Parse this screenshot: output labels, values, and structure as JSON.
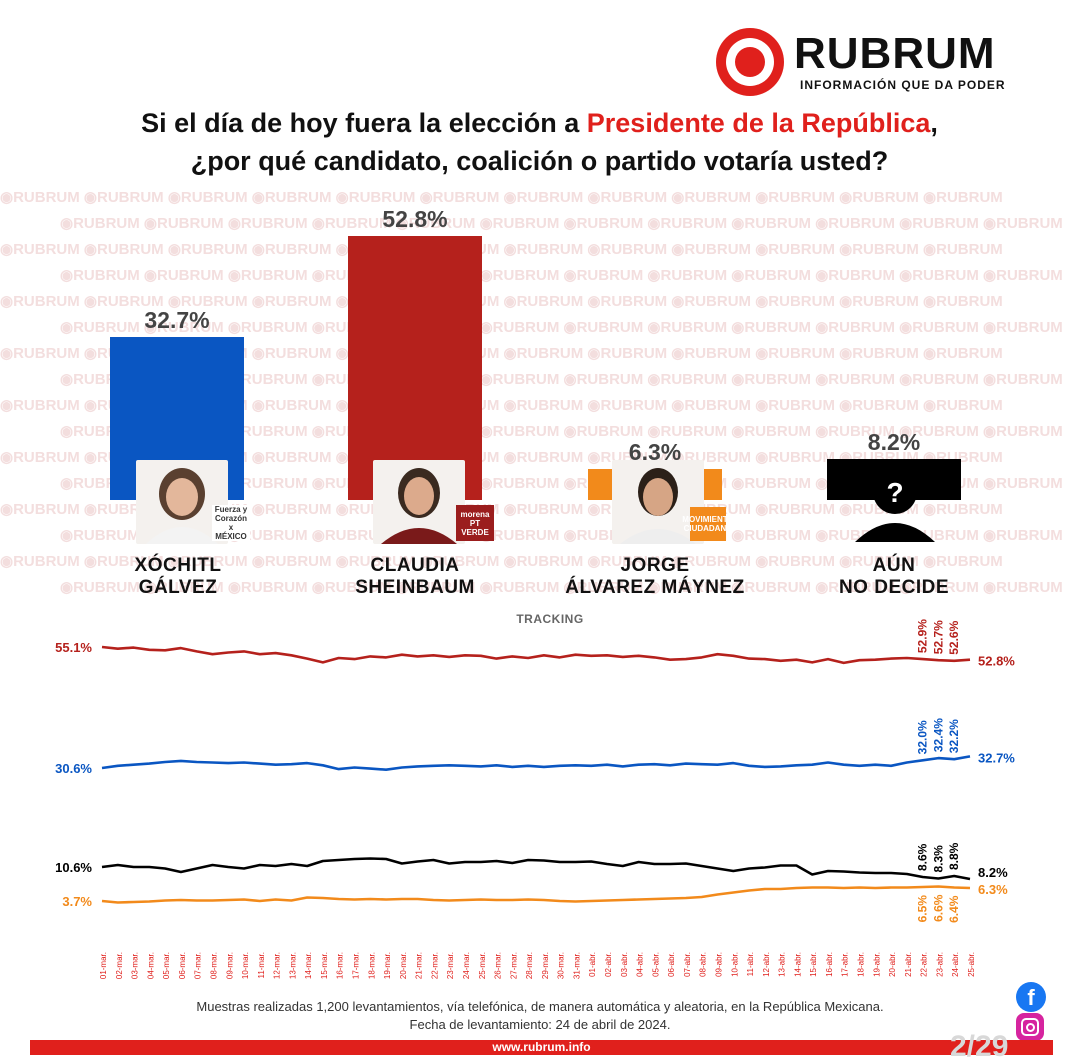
{
  "logo": {
    "brand": "RUBRUM",
    "tagline": "INFORMACIÓN QUE DA PODER"
  },
  "question": {
    "part1": "Si el día de hoy fuera la elección a ",
    "highlight": "Presidente de la República",
    "part2": ",",
    "line2": "¿por qué candidato, coalición o partido votaría usted?"
  },
  "watermark": "RUBRUM",
  "colors": {
    "accent": "#e0201c",
    "galvez": "#0a56c2",
    "sheinbaum": "#b5211c",
    "maynez": "#f28a1b",
    "undecided": "#000000"
  },
  "candidates": [
    {
      "id": "galvez",
      "line1": "XÓCHITL",
      "line2": "GÁLVEZ",
      "value_label": "32.7%",
      "value": 32.7,
      "party": "Fuerza y Corazón x MÉXICO"
    },
    {
      "id": "sheinbaum",
      "line1": "CLAUDIA",
      "line2": "SHEINBAUM",
      "value_label": "52.8%",
      "value": 52.8,
      "party": "morena PT VERDE"
    },
    {
      "id": "maynez",
      "line1": "JORGE",
      "line2": "ÁLVAREZ MÁYNEZ",
      "value_label": "6.3%",
      "value": 6.3,
      "party": "MOVIMIENTO CIUDADANO"
    },
    {
      "id": "undecided",
      "line1": "AÚN",
      "line2": "NO DECIDE",
      "value_label": "8.2%",
      "value": 8.2,
      "party": ""
    }
  ],
  "chart_data": [
    {
      "type": "bar",
      "categories": [
        "XÓCHITL GÁLVEZ",
        "CLAUDIA SHEINBAUM",
        "JORGE ÁLVAREZ MÁYNEZ",
        "AÚN NO DECIDE"
      ],
      "values": [
        32.7,
        52.8,
        6.3,
        8.2
      ],
      "ylim": [
        0,
        60
      ]
    },
    {
      "type": "line",
      "title": "TRACKING",
      "x": [
        "01-mar.",
        "02-mar.",
        "03-mar.",
        "04-mar.",
        "05-mar.",
        "06-mar.",
        "07-mar.",
        "08-mar.",
        "09-mar.",
        "10-mar.",
        "11-mar.",
        "12-mar.",
        "13-mar.",
        "14-mar.",
        "15-mar.",
        "16-mar.",
        "17-mar.",
        "18-mar.",
        "19-mar.",
        "20-mar.",
        "21-mar.",
        "22-mar.",
        "23-mar.",
        "24-mar.",
        "25-mar.",
        "26-mar.",
        "27-mar.",
        "28-mar.",
        "29-mar.",
        "30-mar.",
        "31-mar.",
        "01-abr.",
        "02-abr.",
        "03-abr.",
        "04-abr.",
        "05-abr.",
        "06-abr.",
        "07-abr.",
        "08-abr.",
        "09-abr.",
        "10-abr.",
        "11-abr.",
        "12-abr.",
        "13-abr.",
        "14-abr.",
        "15-abr.",
        "16-abr.",
        "17-abr.",
        "18-abr.",
        "19-abr.",
        "20-abr.",
        "21-abr.",
        "22-abr.",
        "23-abr.",
        "24-abr.",
        "25-abr."
      ],
      "series": [
        {
          "id": "sheinbaum",
          "start_label": "55.1%",
          "end_label": "52.8%",
          "recent_labels": [
            "52.9%",
            "52.7%",
            "52.6%"
          ],
          "values": [
            55.1,
            54.8,
            55.0,
            54.6,
            54.5,
            54.9,
            54.3,
            53.8,
            54.1,
            54.3,
            53.8,
            54.0,
            53.6,
            53.0,
            52.3,
            53.1,
            52.9,
            53.4,
            53.2,
            53.7,
            53.4,
            53.6,
            53.3,
            53.6,
            53.5,
            53.0,
            53.4,
            53.1,
            53.6,
            53.2,
            53.7,
            53.5,
            53.6,
            53.3,
            53.5,
            53.2,
            52.8,
            52.9,
            53.2,
            53.8,
            53.5,
            53.0,
            52.9,
            52.6,
            52.8,
            52.3,
            52.9,
            52.2,
            52.7,
            52.8,
            53.0,
            53.1,
            52.9,
            52.7,
            52.6,
            52.8
          ]
        },
        {
          "id": "galvez",
          "start_label": "30.6%",
          "end_label": "32.7%",
          "recent_labels": [
            "32.0%",
            "32.4%",
            "32.2%"
          ],
          "values": [
            30.6,
            31.0,
            31.2,
            31.4,
            31.7,
            31.9,
            31.7,
            31.6,
            31.5,
            31.6,
            31.4,
            31.2,
            31.3,
            31.5,
            31.1,
            30.4,
            30.7,
            30.5,
            30.3,
            30.7,
            30.9,
            31.0,
            31.1,
            31.0,
            30.9,
            31.1,
            30.8,
            31.0,
            30.8,
            31.0,
            31.1,
            31.0,
            31.2,
            30.9,
            31.2,
            31.3,
            31.1,
            31.4,
            31.3,
            31.2,
            31.5,
            31.0,
            30.8,
            30.9,
            31.1,
            31.2,
            31.6,
            31.2,
            31.0,
            31.2,
            31.0,
            31.6,
            32.0,
            32.4,
            32.2,
            32.7
          ]
        },
        {
          "id": "undecided",
          "start_label": "10.6%",
          "end_label": "8.2%",
          "recent_labels": [
            "8.6%",
            "8.3%",
            "8.8%"
          ],
          "values": [
            10.6,
            11.0,
            10.6,
            10.6,
            10.3,
            9.6,
            10.3,
            11.0,
            10.6,
            10.3,
            11.0,
            10.8,
            11.2,
            10.8,
            11.8,
            12.0,
            12.2,
            12.3,
            12.2,
            11.3,
            11.7,
            12.0,
            11.3,
            11.6,
            11.6,
            11.8,
            11.4,
            12.0,
            11.9,
            11.6,
            11.6,
            11.7,
            11.2,
            10.8,
            11.6,
            11.2,
            11.2,
            11.3,
            10.8,
            10.3,
            9.8,
            10.3,
            10.5,
            10.9,
            10.9,
            9.1,
            9.8,
            9.7,
            9.5,
            9.4,
            9.4,
            9.2,
            8.6,
            8.3,
            8.8,
            8.2
          ]
        },
        {
          "id": "maynez",
          "start_label": "3.7%",
          "end_label": "6.3%",
          "recent_labels": [
            "6.5%",
            "6.6%",
            "6.4%"
          ],
          "values": [
            3.7,
            3.4,
            3.5,
            3.6,
            3.8,
            3.9,
            3.8,
            3.8,
            3.9,
            4.0,
            3.7,
            4.0,
            3.8,
            4.4,
            4.3,
            4.1,
            4.0,
            4.1,
            4.0,
            4.1,
            4.1,
            3.9,
            3.8,
            3.9,
            4.0,
            3.9,
            3.9,
            4.0,
            3.9,
            3.7,
            3.6,
            3.7,
            3.8,
            3.9,
            4.0,
            4.1,
            4.2,
            4.3,
            4.5,
            5.0,
            5.4,
            5.8,
            6.1,
            6.1,
            6.3,
            6.4,
            6.4,
            6.3,
            6.4,
            6.3,
            6.4,
            6.4,
            6.5,
            6.6,
            6.4,
            6.3
          ]
        }
      ]
    }
  ],
  "footnote": {
    "line1": "Muestras realizadas 1,200 levantamientos, vía telefónica, de manera automática y aleatoria, en la República Mexicana.",
    "line2": "Fecha de levantamiento: 24 de abril de 2024."
  },
  "footer": {
    "url": "www.rubrum.info",
    "page": "2/29"
  },
  "social": {
    "facebook": "f"
  }
}
